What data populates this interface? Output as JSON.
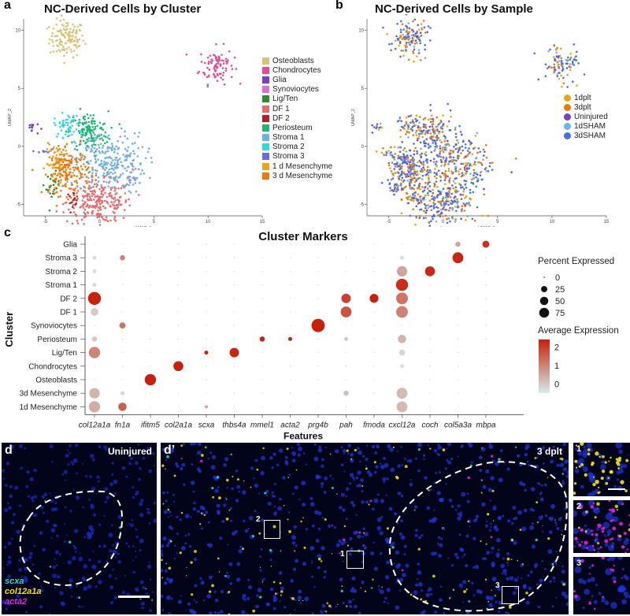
{
  "panels": {
    "a": "a",
    "b": "b",
    "c": "c",
    "d": "d",
    "d_prime": "d’"
  },
  "umap_a": {
    "title": "NC-Derived Cells by Cluster",
    "xlabel": "UMAP_1",
    "ylabel": "UMAP_2",
    "xticks": [
      "-5",
      "0",
      "5",
      "10",
      "15"
    ],
    "yticks": [
      "10",
      "5",
      "0",
      "-5"
    ],
    "legend": [
      {
        "label": "Osteoblasts",
        "color": "#d9c27a"
      },
      {
        "label": "Chondrocytes",
        "color": "#e0508f"
      },
      {
        "label": "Glia",
        "color": "#7a3fc4"
      },
      {
        "label": "Synoviocytes",
        "color": "#d870d8"
      },
      {
        "label": "Lig/Ten",
        "color": "#2f8a2f"
      },
      {
        "label": "DF 1",
        "color": "#e86a6a"
      },
      {
        "label": "DF 2",
        "color": "#b52020"
      },
      {
        "label": "Periosteum",
        "color": "#22b573"
      },
      {
        "label": "Stroma 1",
        "color": "#6fb0e0"
      },
      {
        "label": "Stroma 2",
        "color": "#36d6e0"
      },
      {
        "label": "Stroma 3",
        "color": "#6a6ae0"
      },
      {
        "label": "1 d Mesenchyme",
        "color": "#f0a020"
      },
      {
        "label": "3 d Mesenchyme",
        "color": "#ea7a10"
      }
    ]
  },
  "umap_b": {
    "title": "NC-Derived Cells by Sample",
    "xlabel": "UMAP_1",
    "ylabel": "UMAP_2",
    "xticks": [
      "-5",
      "0",
      "5",
      "10",
      "15"
    ],
    "yticks": [
      "10",
      "5",
      "0",
      "-5"
    ],
    "legend": [
      {
        "label": "1dplt",
        "color": "#e6a61a"
      },
      {
        "label": "3dplt",
        "color": "#e57a12"
      },
      {
        "label": "Uninjured",
        "color": "#7b3fc4"
      },
      {
        "label": "1dSHAM",
        "color": "#6fb4e6"
      },
      {
        "label": "3dSHAM",
        "color": "#4a6ee0"
      }
    ]
  },
  "chart_data": {
    "type": "dotplot",
    "title": "Cluster Markers",
    "xlabel": "Features",
    "ylabel": "Cluster",
    "features": [
      "col12a1a",
      "fn1a",
      "ifitm5",
      "col2a1a",
      "scxa",
      "thbs4a",
      "mmel1",
      "acta2",
      "prg4b",
      "pah",
      "fmoda",
      "cxcl12a",
      "coch",
      "col5a3a",
      "mbpa"
    ],
    "clusters": [
      "Glia",
      "Stroma 3",
      "Stroma 2",
      "Stroma 1",
      "DF 2",
      "DF 1",
      "Synoviocytes",
      "Periosteum",
      "Lig/Ten",
      "Chondrocytes",
      "Osteoblasts",
      "3d Mesenchyme",
      "1d Mesenchyme"
    ],
    "size_legend_title": "Percent Expressed",
    "size_legend": [
      0,
      25,
      50,
      75
    ],
    "color_legend_title": "Average Expression",
    "color_legend_ticks": [
      2,
      1,
      0
    ],
    "color_low": "#d6ecea",
    "color_high": "#c8200a",
    "points": [
      {
        "cluster": "Glia",
        "feature": "col5a3a",
        "pct": 10,
        "avg": 0.5
      },
      {
        "cluster": "Glia",
        "feature": "mbpa",
        "pct": 20,
        "avg": 2.2
      },
      {
        "cluster": "Stroma 3",
        "feature": "col12a1a",
        "pct": 5,
        "avg": -0.3
      },
      {
        "cluster": "Stroma 3",
        "feature": "fn1a",
        "pct": 10,
        "avg": 1.0
      },
      {
        "cluster": "Stroma 3",
        "feature": "cxcl12a",
        "pct": 5,
        "avg": -0.3
      },
      {
        "cluster": "Stroma 3",
        "feature": "col5a3a",
        "pct": 55,
        "avg": 2.3
      },
      {
        "cluster": "Stroma 2",
        "feature": "col12a1a",
        "pct": 5,
        "avg": -0.3
      },
      {
        "cluster": "Stroma 2",
        "feature": "cxcl12a",
        "pct": 50,
        "avg": 0.5
      },
      {
        "cluster": "Stroma 2",
        "feature": "coch",
        "pct": 45,
        "avg": 2.3
      },
      {
        "cluster": "Stroma 1",
        "feature": "col12a1a",
        "pct": 5,
        "avg": -0.3
      },
      {
        "cluster": "Stroma 1",
        "feature": "cxcl12a",
        "pct": 70,
        "avg": 2.2
      },
      {
        "cluster": "DF 2",
        "feature": "col12a1a",
        "pct": 80,
        "avg": 2.4
      },
      {
        "cluster": "DF 2",
        "feature": "pah",
        "pct": 40,
        "avg": 1.9
      },
      {
        "cluster": "DF 2",
        "feature": "fmoda",
        "pct": 35,
        "avg": 2.4
      },
      {
        "cluster": "DF 2",
        "feature": "cxcl12a",
        "pct": 65,
        "avg": 1.2
      },
      {
        "cluster": "DF 1",
        "feature": "col12a1a",
        "pct": 25,
        "avg": 0.0
      },
      {
        "cluster": "DF 1",
        "feature": "pah",
        "pct": 55,
        "avg": 1.7
      },
      {
        "cluster": "DF 1",
        "feature": "cxcl12a",
        "pct": 65,
        "avg": 1.0
      },
      {
        "cluster": "Synoviocytes",
        "feature": "fn1a",
        "pct": 15,
        "avg": 1.2
      },
      {
        "cluster": "Synoviocytes",
        "feature": "prg4b",
        "pct": 85,
        "avg": 2.4
      },
      {
        "cluster": "Periosteum",
        "feature": "col12a1a",
        "pct": 10,
        "avg": 0.0
      },
      {
        "cluster": "Periosteum",
        "feature": "mmel1",
        "pct": 10,
        "avg": 2.4
      },
      {
        "cluster": "Periosteum",
        "feature": "acta2",
        "pct": 5,
        "avg": 2.4
      },
      {
        "cluster": "Periosteum",
        "feature": "pah",
        "pct": 5,
        "avg": 0.0
      },
      {
        "cluster": "Periosteum",
        "feature": "cxcl12a",
        "pct": 30,
        "avg": 0.3
      },
      {
        "cluster": "Lig/Ten",
        "feature": "col12a1a",
        "pct": 60,
        "avg": 1.0
      },
      {
        "cluster": "Lig/Ten",
        "feature": "scxa",
        "pct": 5,
        "avg": 2.4
      },
      {
        "cluster": "Lig/Ten",
        "feature": "thbs4a",
        "pct": 40,
        "avg": 2.3
      },
      {
        "cluster": "Lig/Ten",
        "feature": "cxcl12a",
        "pct": 15,
        "avg": -0.2
      },
      {
        "cluster": "Chondrocytes",
        "feature": "col2a1a",
        "pct": 45,
        "avg": 2.4
      },
      {
        "cluster": "Chondrocytes",
        "feature": "cxcl12a",
        "pct": 5,
        "avg": -0.3
      },
      {
        "cluster": "Osteoblasts",
        "feature": "ifitm5",
        "pct": 60,
        "avg": 2.4
      },
      {
        "cluster": "3d Mesenchyme",
        "feature": "col12a1a",
        "pct": 50,
        "avg": 0.3
      },
      {
        "cluster": "3d Mesenchyme",
        "feature": "fn1a",
        "pct": 5,
        "avg": -0.2
      },
      {
        "cluster": "3d Mesenchyme",
        "feature": "pah",
        "pct": 10,
        "avg": 0.1
      },
      {
        "cluster": "3d Mesenchyme",
        "feature": "cxcl12a",
        "pct": 55,
        "avg": 0.2
      },
      {
        "cluster": "1d Mesenchyme",
        "feature": "col12a1a",
        "pct": 60,
        "avg": 0.4
      },
      {
        "cluster": "1d Mesenchyme",
        "feature": "fn1a",
        "pct": 30,
        "avg": 1.5
      },
      {
        "cluster": "1d Mesenchyme",
        "feature": "scxa",
        "pct": 3,
        "avg": 0.5
      },
      {
        "cluster": "1d Mesenchyme",
        "feature": "cxcl12a",
        "pct": 55,
        "avg": 0.2
      }
    ]
  },
  "micro_d": {
    "label": "Uninjured",
    "stains": [
      {
        "label": "scxa",
        "color": "#2fd8d0"
      },
      {
        "label": "col12a1a",
        "color": "#f2e21a"
      },
      {
        "label": "acta2",
        "color": "#e020e0"
      }
    ]
  },
  "micro_dprime": {
    "label": "3 dplt",
    "insets": [
      "1",
      "2",
      "3"
    ]
  },
  "zoom_panels": [
    "1",
    "2",
    "3"
  ]
}
